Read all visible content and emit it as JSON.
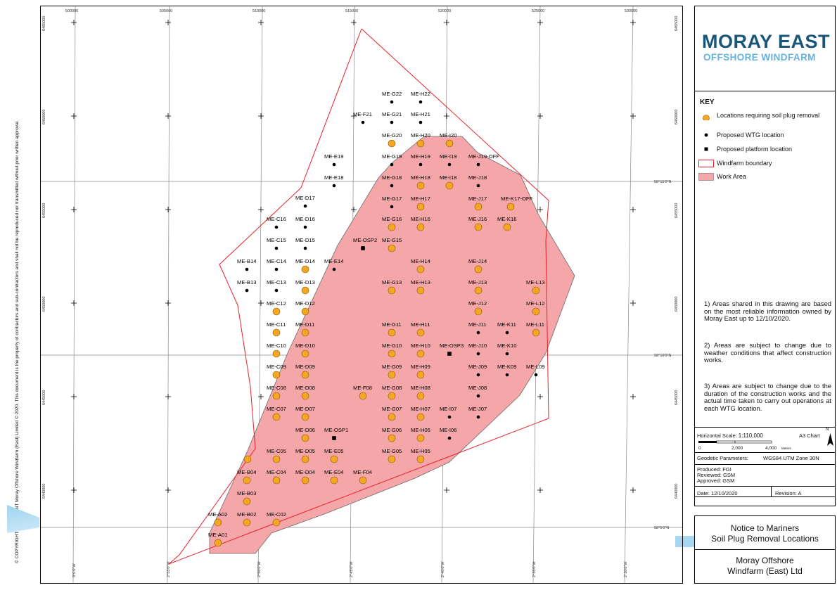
{
  "map": {
    "easting_ticks": [
      "500000",
      "505000",
      "510000",
      "515000",
      "520000",
      "525000",
      "530000"
    ],
    "northing_ticks": [
      "6465000",
      "6460000",
      "6455000",
      "6450000",
      "6445000",
      "6440000"
    ],
    "latitude_labels": [
      "58°15'0\"N",
      "58°10'0\"N",
      "58°5'0\"N"
    ],
    "longitude_labels": [
      "3°0'0\"W",
      "2°55'0\"W",
      "2°50'0\"W",
      "2°45'0\"W",
      "2°40'0\"W",
      "2°35'0\"W",
      "2°30'0\"W"
    ],
    "colors": {
      "work_area": "#f5a6a8",
      "boundary": "#e8202a",
      "soil_plug": "#f5a623",
      "grid": "#888888"
    },
    "soil_plug_locations": [
      "ME-A01",
      "ME-A02",
      "ME-B02",
      "ME-B03",
      "ME-B04",
      "ME-C02",
      "ME-C04",
      "ME-C05",
      "ME-C07",
      "ME-C08",
      "ME-C09",
      "ME-C10",
      "ME-C11",
      "ME-C12",
      "ME-D04",
      "ME-D05",
      "ME-D06",
      "ME-D07",
      "ME-D08",
      "ME-D09",
      "ME-D10",
      "ME-D11",
      "ME-D12",
      "ME-D13",
      "ME-D14",
      "ME-E04",
      "ME-E05",
      "ME-F04",
      "ME-F08",
      "ME-G05",
      "ME-G06",
      "ME-G07",
      "ME-G08",
      "ME-G09",
      "ME-G10",
      "ME-G11",
      "ME-G13",
      "ME-G15",
      "ME-G16",
      "ME-G20",
      "ME-H05",
      "ME-H06",
      "ME-H07",
      "ME-H08",
      "ME-H09",
      "ME-H10",
      "ME-H11",
      "ME-H13",
      "ME-H14",
      "ME-H16",
      "ME-H17",
      "ME-H18",
      "ME-H20",
      "ME-I18",
      "ME-I20",
      "ME-J12",
      "ME-J13",
      "ME-J14",
      "ME-J16",
      "ME-J17",
      "ME-K16",
      "ME-K17-OFF",
      "ME-L11",
      "ME-L12",
      "ME-L13"
    ],
    "wtg_locations": [
      "ME-B13",
      "ME-B14",
      "ME-C13",
      "ME-C14",
      "ME-C15",
      "ME-C16",
      "ME-D15",
      "ME-D16",
      "ME-D17",
      "ME-E14",
      "ME-E18",
      "ME-E19",
      "ME-F21",
      "ME-G17",
      "ME-G18",
      "ME-G19",
      "ME-G21",
      "ME-G22",
      "ME-H19",
      "ME-H21",
      "ME-H22",
      "ME-I06",
      "ME-I07",
      "ME-I19",
      "ME-J07",
      "ME-J08",
      "ME-J09",
      "ME-J10",
      "ME-J11",
      "ME-J18",
      "ME-J19-OFF",
      "ME-K09",
      "ME-K10",
      "ME-K11",
      "ME-L09"
    ],
    "platform_locations": [
      "ME-OSP1",
      "ME-OSP2",
      "ME-OSP3"
    ]
  },
  "logo": {
    "line1": "MORAY EAST",
    "line2": "OFFSHORE WINDFARM"
  },
  "key": {
    "title": "KEY",
    "items": [
      {
        "symbol": "orange-circle",
        "label": "Locations requiring soil plug removal"
      },
      {
        "symbol": "black-dot",
        "label": "Proposed WTG location"
      },
      {
        "symbol": "black-square",
        "label": "Proposed platform location"
      },
      {
        "symbol": "red-outline-box",
        "label": "Windfarm boundary"
      },
      {
        "symbol": "pink-fill-box",
        "label": "Work Area"
      }
    ]
  },
  "notes": [
    "1) Areas shared in this drawing are based on the most reliable information owned by Moray East up to 12/10/2020.",
    "2) Areas are subject to change due to weather conditions that affect construction works.",
    "3) Areas are subject to change due to the duration of the construction works and the actual time taken to carry out operations at each WTG location."
  ],
  "scale": {
    "label": "Horizontal Scale:",
    "value": "1:110,000",
    "sheet": "A3 Chart",
    "north": "N",
    "bar_ticks": [
      "0",
      "2,000",
      "4,000"
    ],
    "bar_unit": "Meters"
  },
  "geodetic": {
    "label": "Geodetic Parameters:",
    "value": "WGS84 UTM Zone 30N"
  },
  "approvals": {
    "produced": "Produced: FGI",
    "reviewed": "Reviewed: GSM",
    "approved": "Approved: GSM"
  },
  "date": "Date: 12/10/2020",
  "revision": "Revision: A",
  "title_block": {
    "title_line1": "Notice to Mariners",
    "title_line2": "Soil Plug Removal Locations",
    "company_line1": "Moray Offshore",
    "company_line2": "Windfarm (East) Ltd"
  },
  "copyright": "© COPYRIGHT STATEMENT Moray Offshore Windfarm (East) Limited © 2020. This document is the property of contractors and sub-contractors and shall not be reproduced nor transmitted without prior written approval."
}
